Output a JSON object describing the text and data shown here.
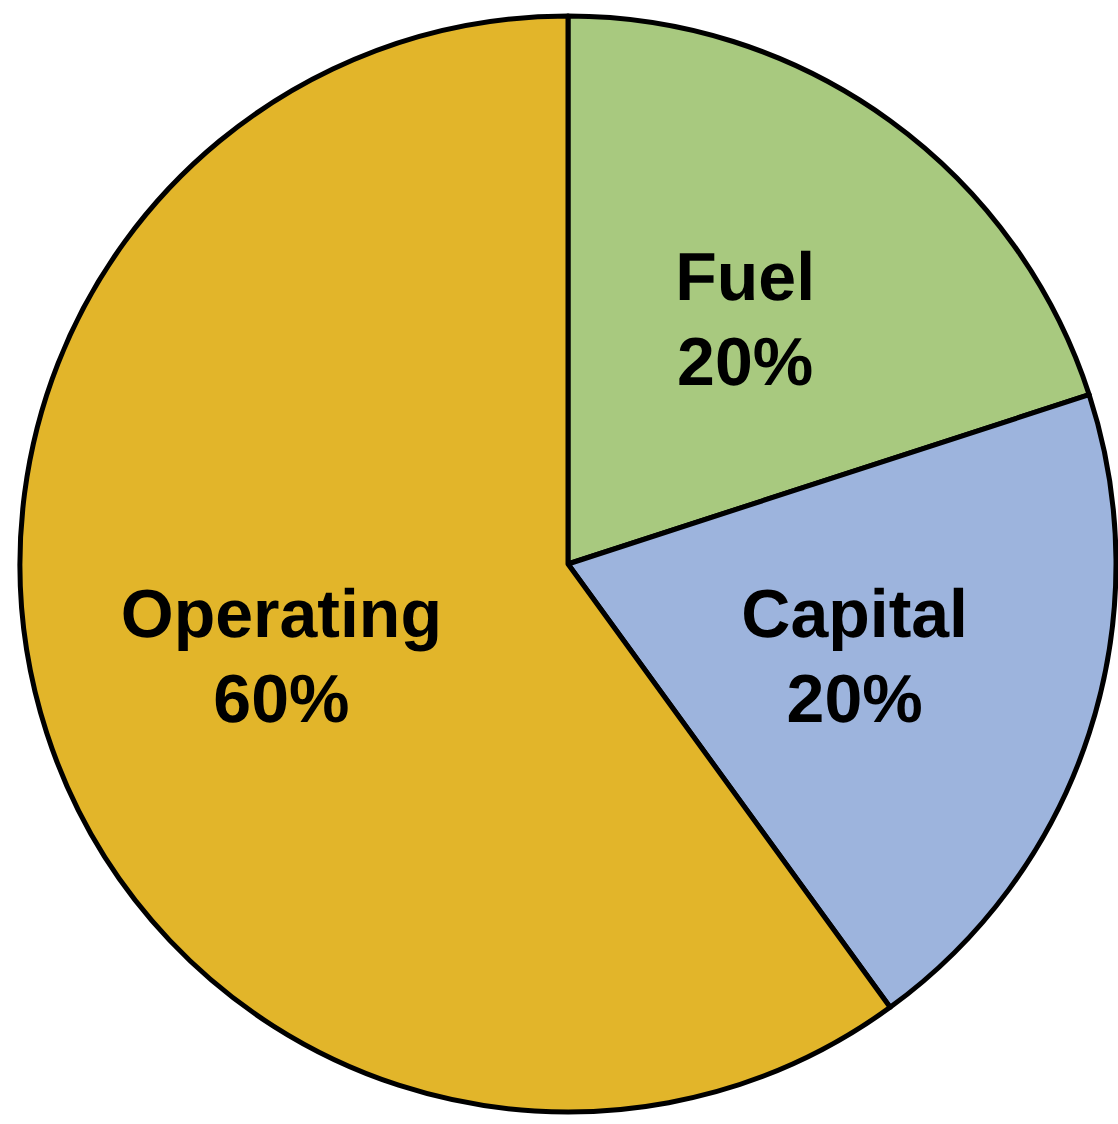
{
  "chart_data": {
    "type": "pie",
    "categories": [
      "Fuel",
      "Capital",
      "Operating"
    ],
    "values": [
      20,
      20,
      60
    ],
    "colors": [
      "#a8c97f",
      "#9db4dd",
      "#e2b52a"
    ],
    "value_labels": [
      "20%",
      "20%",
      "60%"
    ]
  }
}
